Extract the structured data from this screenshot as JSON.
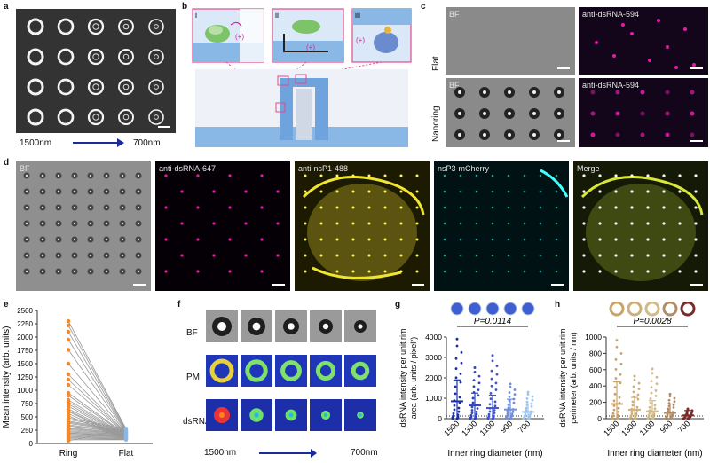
{
  "panels": {
    "a": {
      "label": "a",
      "left": "1500nm",
      "right": "700nm"
    },
    "b": {
      "label": "b",
      "sub": [
        "i",
        "ii",
        "iii"
      ],
      "plus": "(+)"
    },
    "c": {
      "label": "c",
      "bf": "BF",
      "anti": "anti-dsRNA-594",
      "row1": "Flat",
      "row2": "Nanoring"
    },
    "d": {
      "label": "d",
      "titles": [
        "BF",
        "anti-dsRNA-647",
        "anti-nsP1-488",
        "nsP3-mCherry",
        "Merge"
      ]
    },
    "e": {
      "label": "e"
    },
    "f": {
      "label": "f",
      "rows": [
        "BF",
        "PM",
        "dsRNA"
      ],
      "left": "1500nm",
      "right": "700nm"
    },
    "g": {
      "label": "g"
    },
    "h": {
      "label": "h"
    }
  },
  "chart_data": [
    {
      "type": "scatter",
      "panel": "e",
      "ylabel": "Mean intensity (arb. units)",
      "categories": [
        "Ring",
        "Flat"
      ],
      "ylim": [
        0,
        2500
      ],
      "yticks": [
        0,
        250,
        500,
        750,
        1000,
        1250,
        1500,
        1750,
        2000,
        2250,
        2500
      ],
      "ring_values": [
        2300,
        2220,
        2100,
        1950,
        1760,
        1500,
        1300,
        1200,
        1100,
        950,
        900,
        820,
        780,
        740,
        700,
        650,
        620,
        600,
        560,
        520,
        480,
        450,
        420,
        400,
        380,
        350,
        330,
        300,
        280,
        260,
        240,
        220,
        200,
        190,
        170,
        150,
        130,
        110,
        90,
        70,
        50
      ],
      "flat_values": [
        280,
        260,
        240,
        230,
        220,
        210,
        200,
        190,
        180,
        170,
        160,
        150,
        140,
        130,
        120,
        110,
        100,
        90,
        80,
        70
      ]
    },
    {
      "type": "scatter",
      "panel": "g",
      "p_label": "P=0.0114",
      "ylabel": "dsRNA intensity per unit rim area (arb. units / pixel²)",
      "xlabel": "Inner ring diameter (nm)",
      "categories": [
        "1500",
        "1300",
        "1100",
        "900",
        "700"
      ],
      "ylim": [
        0,
        4000
      ],
      "yticks": [
        0,
        1000,
        2000,
        3000,
        4000
      ],
      "means": [
        850,
        650,
        520,
        450,
        330
      ],
      "sd_upper": [
        1900,
        1250,
        1150,
        950,
        720
      ],
      "max_values": [
        3900,
        2500,
        3100,
        1700,
        1300
      ],
      "colors": [
        "#1a2fa6",
        "#2f44c4",
        "#3f55cf",
        "#6f8fdf",
        "#9fc4ee"
      ]
    },
    {
      "type": "scatter",
      "panel": "h",
      "p_label": "P=0.0028",
      "ylabel": "dsRNA intensity per unit rim perimeter (arb. units / nm)",
      "xlabel": "Inner ring diameter (nm)",
      "categories": [
        "1500",
        "1300",
        "1100",
        "900",
        "700"
      ],
      "ylim": [
        0,
        1000
      ],
      "yticks": [
        0,
        200,
        400,
        600,
        800,
        1000
      ],
      "means": [
        180,
        110,
        90,
        70,
        40
      ],
      "sd_upper": [
        450,
        260,
        220,
        180,
        100
      ],
      "max_values": [
        960,
        520,
        610,
        300,
        120
      ],
      "colors": [
        "#c9a46a",
        "#cdb07a",
        "#d2ba86",
        "#b08d66",
        "#7a2c2c"
      ]
    }
  ],
  "colors": {
    "dark_blue": "#1a2b9a",
    "orange": "#f28a2c",
    "light_blue": "#8ab8e6",
    "magenta": "#e21ca8",
    "pink": "#e24a8a"
  }
}
